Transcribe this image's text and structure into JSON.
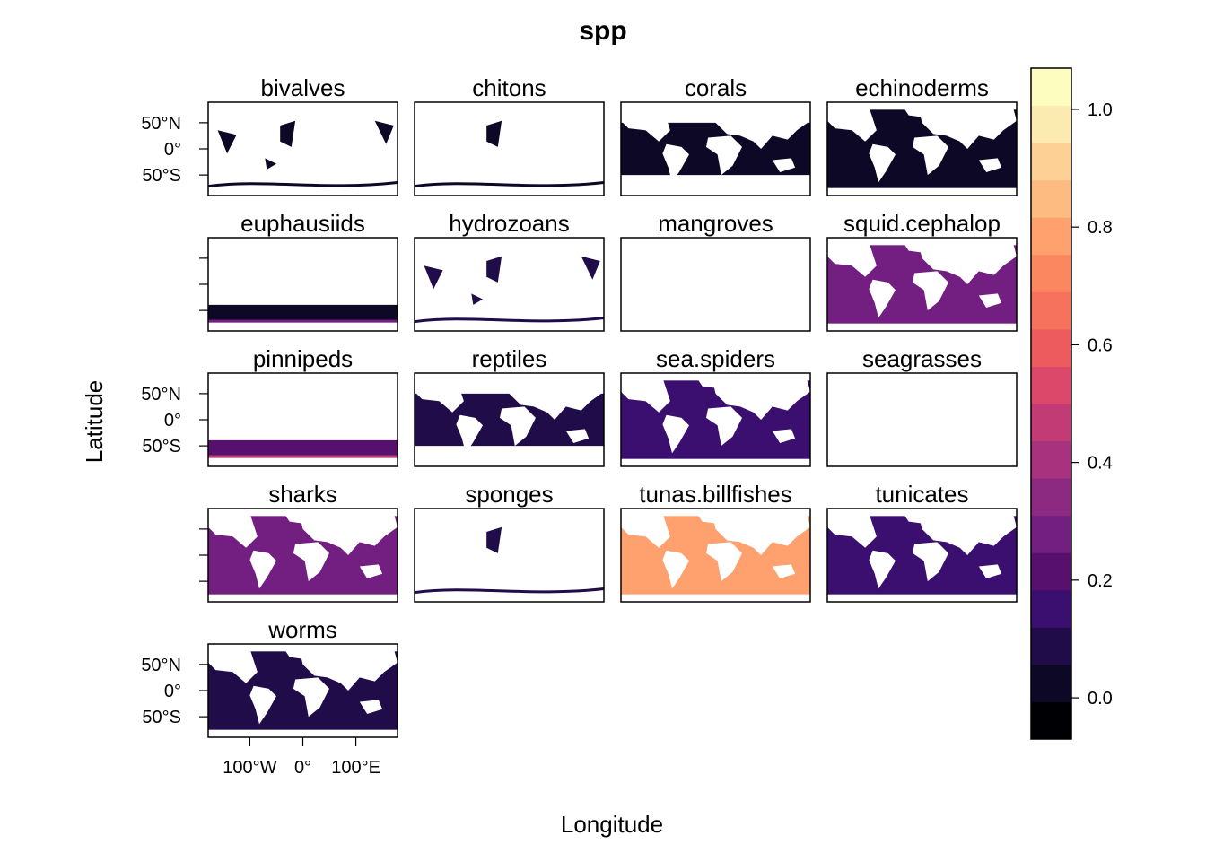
{
  "title": "spp",
  "xlabel": "Longitude",
  "ylabel": "Latitude",
  "x_ticks": [
    "100°W",
    "0°",
    "100°E"
  ],
  "y_ticks": [
    "50°N",
    "0°",
    "50°S"
  ],
  "panels": [
    {
      "name": "bivalves",
      "level": 0.04,
      "coverage": "sparse"
    },
    {
      "name": "chitons",
      "level": 0.03,
      "coverage": "very-sparse"
    },
    {
      "name": "corals",
      "level": 0.05,
      "coverage": "tropical"
    },
    {
      "name": "echinoderms",
      "level": 0.05,
      "coverage": "widespread"
    },
    {
      "name": "euphausiids",
      "level": 0.05,
      "coverage": "southern-band"
    },
    {
      "name": "hydrozoans",
      "level": 0.06,
      "coverage": "sparse"
    },
    {
      "name": "mangroves",
      "level": 0.0,
      "coverage": "empty"
    },
    {
      "name": "squid.cephalop",
      "level": 0.25,
      "coverage": "full"
    },
    {
      "name": "pinnipeds",
      "level": 0.2,
      "coverage": "southern-band"
    },
    {
      "name": "reptiles",
      "level": 0.1,
      "coverage": "tropical"
    },
    {
      "name": "sea.spiders",
      "level": 0.12,
      "coverage": "widespread"
    },
    {
      "name": "seagrasses",
      "level": 0.0,
      "coverage": "empty"
    },
    {
      "name": "sharks",
      "level": 0.25,
      "coverage": "full"
    },
    {
      "name": "sponges",
      "level": 0.08,
      "coverage": "very-sparse"
    },
    {
      "name": "tunas.billfishes",
      "level": 0.8,
      "coverage": "full"
    },
    {
      "name": "tunicates",
      "level": 0.15,
      "coverage": "widespread"
    },
    {
      "name": "worms",
      "level": 0.08,
      "coverage": "widespread"
    }
  ],
  "colorbar": {
    "ticks": [
      "0.0",
      "0.2",
      "0.4",
      "0.6",
      "0.8",
      "1.0"
    ],
    "range": [
      -0.07,
      1.07
    ],
    "colors": [
      "#000004",
      "#0c0826",
      "#1f0c48",
      "#3b0f70",
      "#57106e",
      "#721f81",
      "#8c2981",
      "#a8327d",
      "#c33b75",
      "#dc4869",
      "#ee5b5e",
      "#f6725c",
      "#fb8761",
      "#fea16e",
      "#febb81",
      "#fdd195",
      "#fcebb0",
      "#fcfdbf"
    ]
  }
}
